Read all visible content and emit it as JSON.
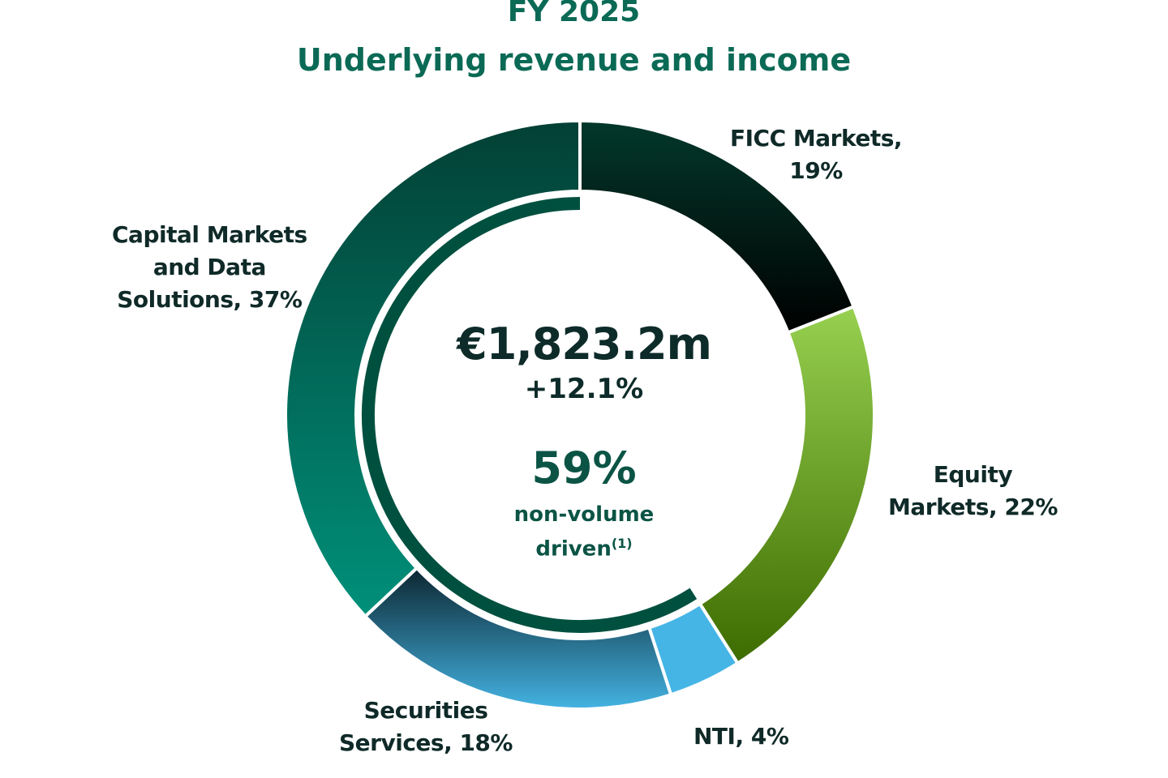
{
  "chart_data": {
    "type": "pie",
    "title": "FY 2025",
    "subtitle": "Underlying revenue and income",
    "total_label": "€1,823.2m",
    "growth_label": "+12.1%",
    "inner_arc": {
      "value": 59,
      "label": "59%",
      "caption": "non-volume driven",
      "footnote": "(1)",
      "color": "#00503f"
    },
    "slices": [
      {
        "name": "FICC Markets",
        "value": 19,
        "label_line1": "FICC Markets,",
        "label_line2": "19%",
        "colors": [
          "#03382b",
          "#000000"
        ]
      },
      {
        "name": "Equity Markets",
        "value": 22,
        "label_line1": "Equity",
        "label_line2": "Markets, 22%",
        "colors": [
          "#97d150",
          "#3d6b00"
        ]
      },
      {
        "name": "NTI",
        "value": 4,
        "label_line1": "NTI, 4%",
        "colors": [
          "#45b5e6",
          "#45b5e6"
        ]
      },
      {
        "name": "Securities Services",
        "value": 18,
        "label_line1": "Securities",
        "label_line2": "Services, 18%",
        "colors": [
          "#0c2630",
          "#44b3e3"
        ]
      },
      {
        "name": "Capital Markets and Data Solutions",
        "value": 37,
        "label_line1": "Capital Markets",
        "label_line2": "and Data",
        "label_line3": "Solutions, 37%",
        "colors": [
          "#034035",
          "#00907a"
        ]
      }
    ]
  }
}
